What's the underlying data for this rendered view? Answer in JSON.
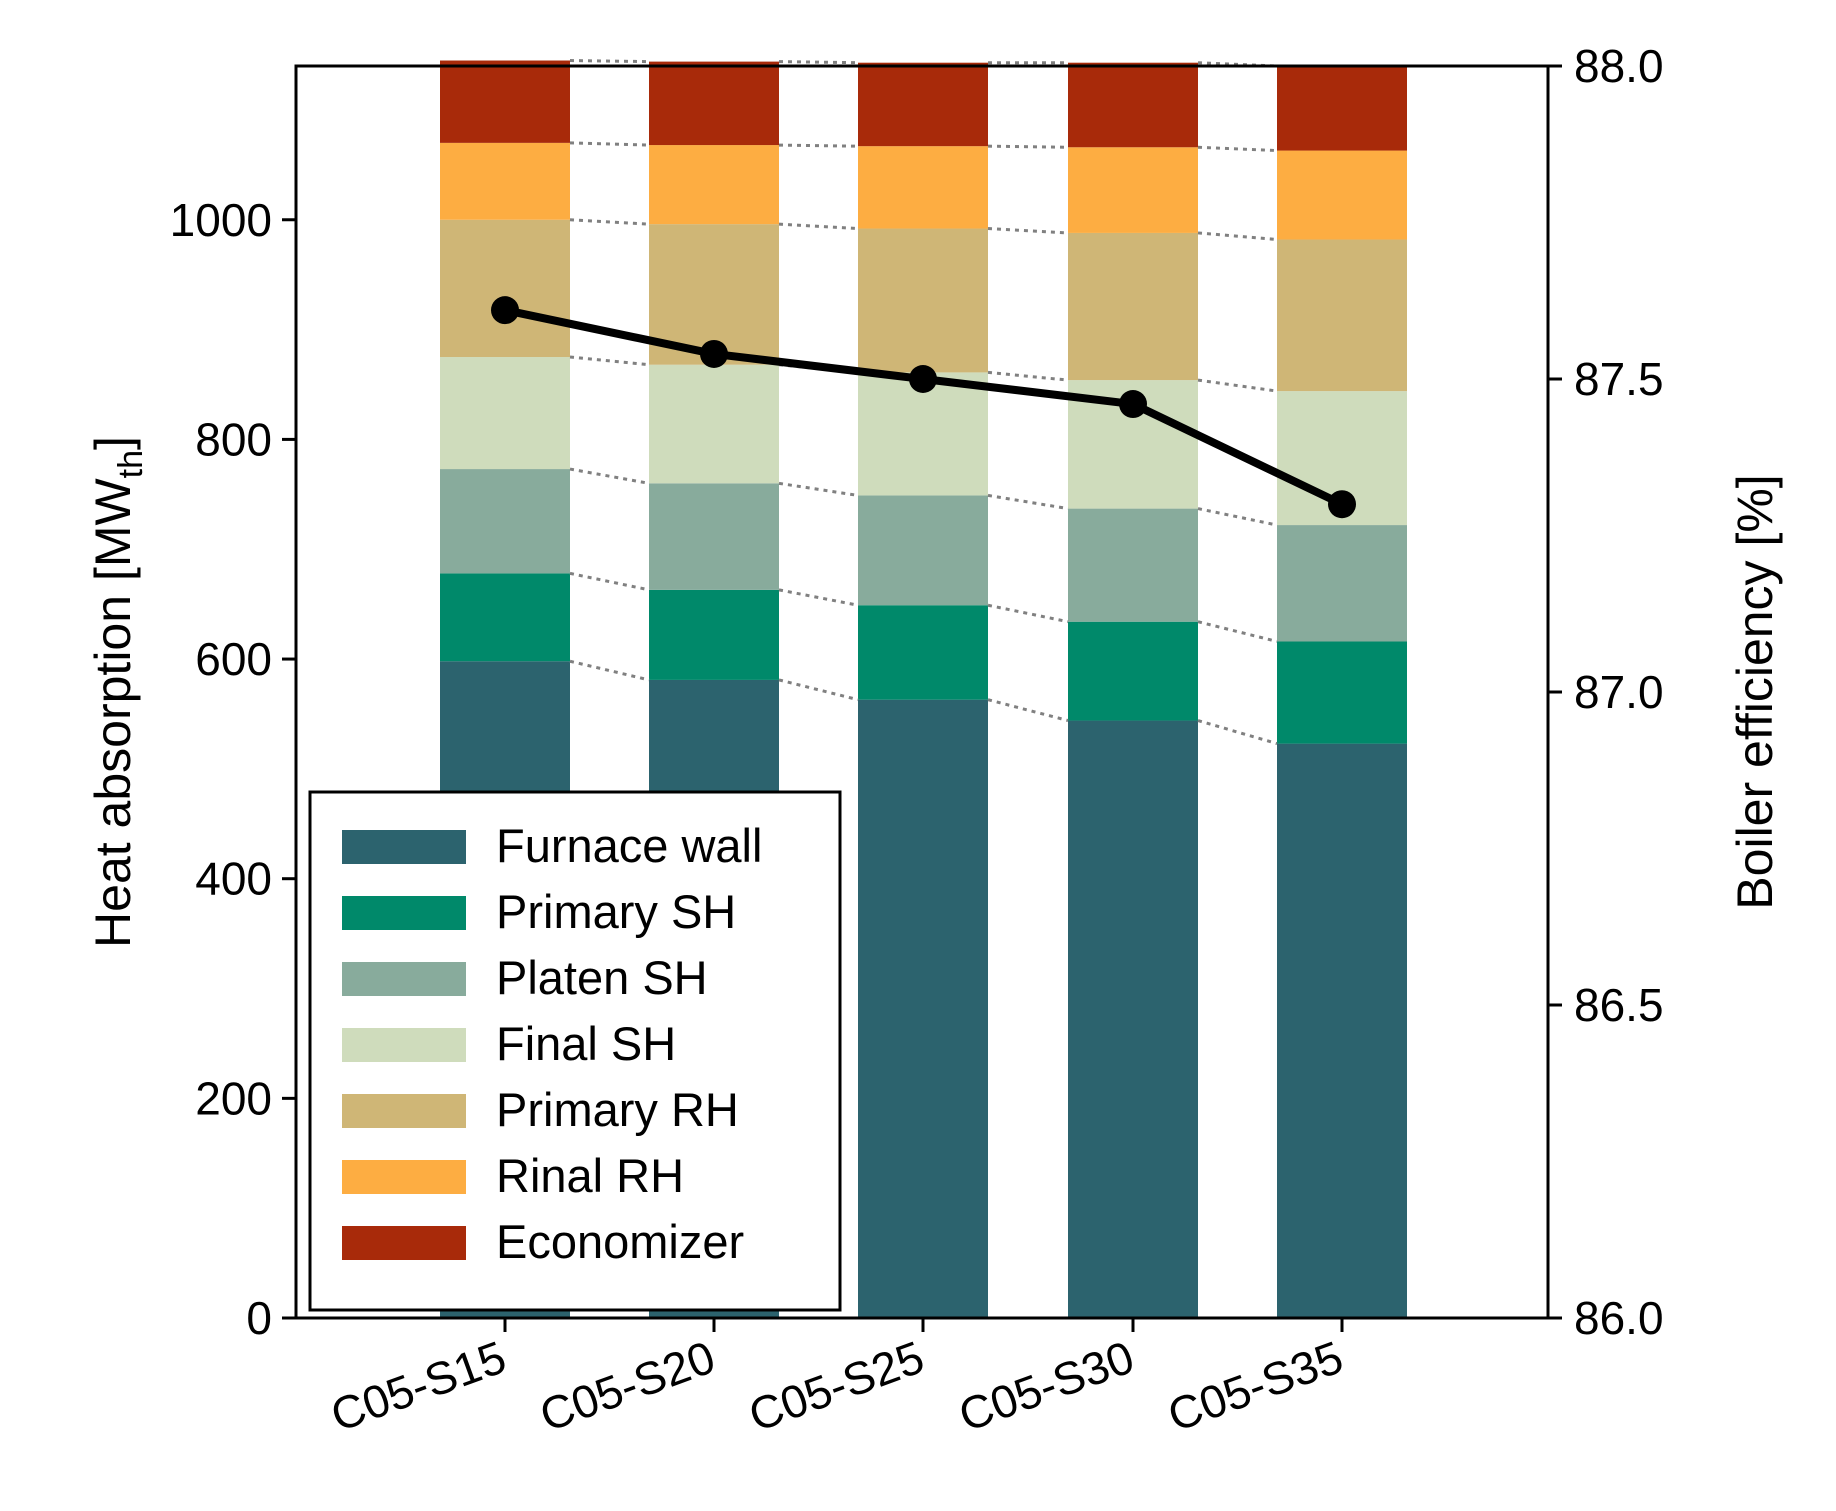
{
  "chart_data": {
    "type": "bar",
    "stacked": true,
    "categories": [
      "C05-S15",
      "C05-S20",
      "C05-S25",
      "C05-S30",
      "C05-S35"
    ],
    "series": [
      {
        "name": "Furnace wall",
        "color": "#2C636E",
        "values": [
          598,
          581,
          563,
          544,
          523
        ]
      },
      {
        "name": "Primary SH",
        "color": "#00896A",
        "values": [
          80,
          82,
          86,
          90,
          93
        ]
      },
      {
        "name": "Platen SH",
        "color": "#88AB9C",
        "values": [
          95,
          97,
          100,
          103,
          106
        ]
      },
      {
        "name": "Final SH",
        "color": "#CFDCBC",
        "values": [
          102,
          108,
          112,
          117,
          122
        ]
      },
      {
        "name": "Primary RH",
        "color": "#CFB676",
        "values": [
          125,
          128,
          131,
          134,
          138
        ]
      },
      {
        "name": "Rinal RH",
        "color": "#FDAD42",
        "values": [
          70,
          72,
          75,
          78,
          81
        ]
      },
      {
        "name": "Economizer",
        "color": "#A82A0A",
        "values": [
          75,
          76,
          76,
          77,
          77
        ]
      }
    ],
    "line_series": {
      "name": "Boiler efficiency",
      "color": "#000000",
      "axis": "right",
      "values": [
        87.61,
        87.54,
        87.5,
        87.46,
        87.3
      ]
    },
    "ylabel_left": "Heat absorption [MW",
    "ylabel_left_sub": "th",
    "ylabel_left_suffix": "]",
    "ylabel_right": "Boiler efficiency [%]",
    "ylim_left": [
      0,
      1140
    ],
    "yticks_left": [
      "0",
      "200",
      "400",
      "600",
      "800",
      "1000"
    ],
    "ylim_right": [
      86.0,
      88.0
    ],
    "yticks_right": [
      "86.0",
      "86.5",
      "87.0",
      "87.5",
      "88.0"
    ],
    "legend": "lower-left, boxed",
    "connector_lines": "gray dotted between bar segment boundaries"
  }
}
